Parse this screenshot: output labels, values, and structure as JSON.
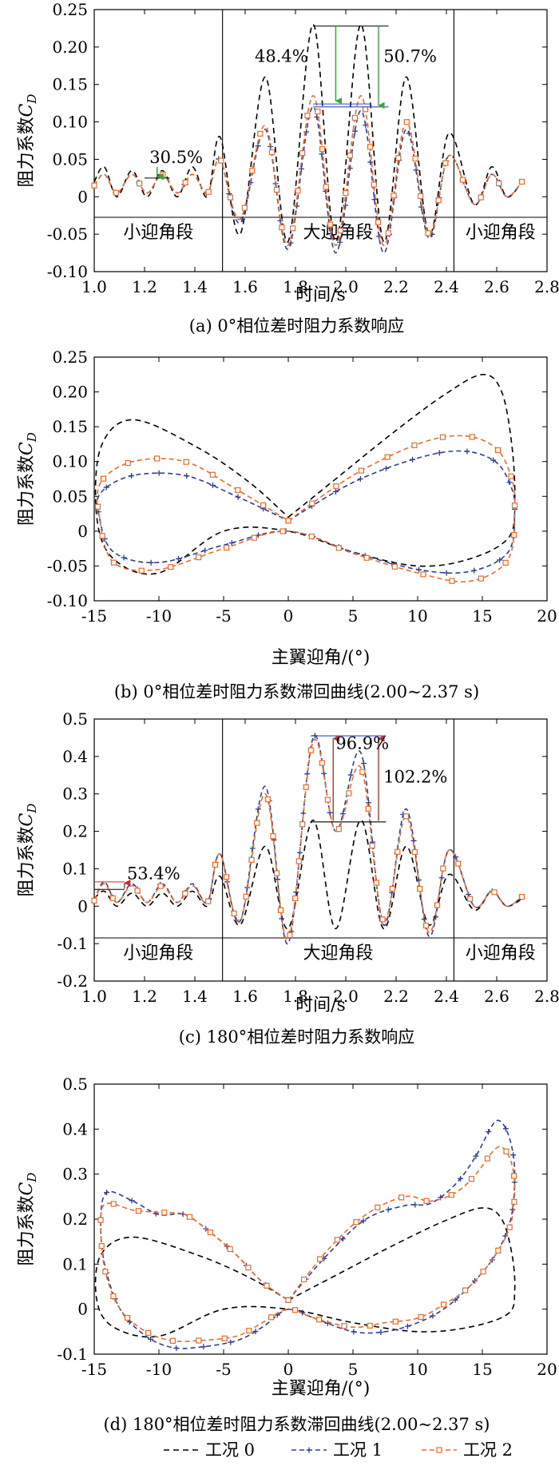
{
  "colors": {
    "case0": "#000000",
    "case1": "#2e3e96",
    "case2": "#ee6a2a",
    "green": "#3aa63a",
    "red": "#d02a2a",
    "blue": "#2e4fc8"
  },
  "legend": [
    {
      "label": "工况 0"
    },
    {
      "label": "工况 1"
    },
    {
      "label": "工况 2"
    }
  ],
  "chart_data": [
    {
      "type": "line",
      "caption": "(a) 0°相位差时阻力系数响应",
      "xlabel": "时间/s",
      "ylabel_main": "阻力系数",
      "ylabel_sym": "C",
      "ylabel_sub": "D",
      "xlim": [
        1.0,
        2.8
      ],
      "ylim": [
        -0.1,
        0.25
      ],
      "xticks": [
        "1.0",
        "1.2",
        "1.4",
        "1.6",
        "1.8",
        "2.0",
        "2.2",
        "2.4",
        "2.6",
        "2.8"
      ],
      "yticks": [
        "0.25",
        "0.20",
        "0.15",
        "0.10",
        "0.05",
        "0",
        "-0.05",
        "-0.10"
      ],
      "segments": [
        "小迎角段",
        "大迎角段",
        "小迎角段"
      ],
      "segment_bounds": [
        1.51,
        2.43
      ],
      "annotations": [
        "30.5%",
        "48.4%",
        "50.7%"
      ],
      "series": [
        {
          "id": "case0",
          "x": [
            1.0,
            1.04,
            1.09,
            1.15,
            1.21,
            1.27,
            1.33,
            1.39,
            1.45,
            1.5,
            1.58,
            1.68,
            1.77,
            1.87,
            1.96,
            2.06,
            2.15,
            2.24,
            2.33,
            2.41,
            2.51,
            2.58,
            2.64,
            2.7
          ],
          "y": [
            0.02,
            0.04,
            0.0,
            0.035,
            0.0,
            0.035,
            0.0,
            0.04,
            0.0,
            0.08,
            -0.05,
            0.16,
            -0.06,
            0.23,
            -0.06,
            0.23,
            -0.06,
            0.16,
            -0.05,
            0.085,
            -0.01,
            0.04,
            0.0,
            0.02
          ]
        },
        {
          "id": "case1",
          "x": [
            1.0,
            1.04,
            1.09,
            1.15,
            1.21,
            1.27,
            1.33,
            1.39,
            1.45,
            1.5,
            1.58,
            1.68,
            1.77,
            1.87,
            1.96,
            2.06,
            2.15,
            2.24,
            2.33,
            2.41,
            2.51,
            2.58,
            2.64,
            2.7
          ],
          "y": [
            0.015,
            0.03,
            0.005,
            0.03,
            0.005,
            0.03,
            0.005,
            0.03,
            0.005,
            0.05,
            -0.035,
            0.09,
            -0.07,
            0.12,
            -0.075,
            0.115,
            -0.075,
            0.09,
            -0.055,
            0.055,
            -0.01,
            0.03,
            0.0,
            0.02
          ]
        },
        {
          "id": "case2",
          "x": [
            1.0,
            1.04,
            1.09,
            1.15,
            1.21,
            1.27,
            1.33,
            1.39,
            1.45,
            1.5,
            1.58,
            1.68,
            1.77,
            1.87,
            1.96,
            2.06,
            2.15,
            2.24,
            2.33,
            2.41,
            2.51,
            2.58,
            2.64,
            2.7
          ],
          "y": [
            0.015,
            0.03,
            0.005,
            0.03,
            0.005,
            0.03,
            0.005,
            0.03,
            0.005,
            0.05,
            -0.03,
            0.095,
            -0.065,
            0.135,
            -0.065,
            0.135,
            -0.065,
            0.1,
            -0.05,
            0.055,
            -0.01,
            0.03,
            0.0,
            0.02
          ]
        }
      ]
    },
    {
      "type": "line",
      "caption": "(b) 0°相位差时阻力系数滞回曲线(2.00~2.37 s)",
      "xlabel": "主翼迎角/(°)",
      "ylabel_main": "阻力系数",
      "ylabel_sym": "C",
      "ylabel_sub": "D",
      "xlim": [
        -15,
        20
      ],
      "ylim": [
        -0.1,
        0.25
      ],
      "xticks": [
        "-15",
        "-10",
        "-5",
        "0",
        "5",
        "10",
        "15",
        "20"
      ],
      "yticks": [
        "0.25",
        "0.20",
        "0.15",
        "0.10",
        "0.05",
        "0",
        "-0.05",
        "-0.10"
      ],
      "series": [
        {
          "id": "case0",
          "x": [
            0,
            4,
            8,
            12,
            15,
            16.5,
            17.3,
            17.5,
            17,
            14,
            10,
            5,
            0,
            -5,
            -10,
            -13.5,
            -14.8,
            -14.5,
            -12,
            -7,
            -3,
            0
          ],
          "y": [
            0.02,
            0.08,
            0.14,
            0.195,
            0.225,
            0.2,
            0.12,
            0.04,
            -0.01,
            -0.04,
            -0.05,
            -0.03,
            0.0,
            0.0,
            -0.06,
            -0.04,
            0.02,
            0.12,
            0.16,
            0.12,
            0.07,
            0.02
          ]
        },
        {
          "id": "case1",
          "x": [
            0,
            5,
            10,
            13.5,
            16,
            17.2,
            17.5,
            17,
            14,
            10,
            5,
            0,
            -5,
            -10,
            -13.5,
            -14.6,
            -14.5,
            -12,
            -8,
            -4,
            0
          ],
          "y": [
            0.015,
            0.07,
            0.105,
            0.115,
            0.1,
            0.065,
            0.03,
            -0.03,
            -0.058,
            -0.055,
            -0.03,
            0.0,
            -0.02,
            -0.045,
            -0.03,
            0.02,
            0.055,
            0.08,
            0.08,
            0.05,
            0.015
          ]
        },
        {
          "id": "case2",
          "x": [
            0,
            5,
            10,
            13.5,
            16,
            17.2,
            17.5,
            17,
            14,
            10,
            5,
            0,
            -5,
            -10,
            -13.5,
            -14.6,
            -14.5,
            -12,
            -8,
            -4,
            0
          ],
          "y": [
            0.015,
            0.08,
            0.125,
            0.137,
            0.12,
            0.08,
            0.035,
            -0.04,
            -0.072,
            -0.06,
            -0.032,
            0.0,
            -0.025,
            -0.055,
            -0.045,
            0.02,
            0.07,
            0.1,
            0.1,
            0.06,
            0.015
          ]
        }
      ]
    },
    {
      "type": "line",
      "caption": "(c) 180°相位差时阻力系数响应",
      "xlabel": "时间/s",
      "ylabel_main": "阻力系数",
      "ylabel_sym": "C",
      "ylabel_sub": "D",
      "xlim": [
        1.0,
        2.8
      ],
      "ylim": [
        -0.2,
        0.5
      ],
      "xticks": [
        "1.0",
        "1.2",
        "1.4",
        "1.6",
        "1.8",
        "2.0",
        "2.2",
        "2.4",
        "2.6",
        "2.8"
      ],
      "yticks": [
        "0.5",
        "0.4",
        "0.3",
        "0.2",
        "0.1",
        "0",
        "-0.1",
        "-0.2"
      ],
      "segments": [
        "小迎角段",
        "大迎角段",
        "小迎角段"
      ],
      "segment_bounds": [
        1.51,
        2.43
      ],
      "annotations": [
        "53.4%",
        "96.9%",
        "102.2%"
      ],
      "series": [
        {
          "id": "case0",
          "x": [
            1.0,
            1.04,
            1.09,
            1.15,
            1.21,
            1.27,
            1.33,
            1.39,
            1.45,
            1.5,
            1.58,
            1.68,
            1.77,
            1.87,
            1.96,
            2.06,
            2.15,
            2.24,
            2.33,
            2.41,
            2.51,
            2.58,
            2.64,
            2.7
          ],
          "y": [
            0.02,
            0.04,
            0.0,
            0.035,
            0.0,
            0.035,
            0.0,
            0.04,
            0.0,
            0.08,
            -0.05,
            0.16,
            -0.06,
            0.23,
            -0.06,
            0.23,
            -0.06,
            0.16,
            -0.05,
            0.085,
            -0.01,
            0.04,
            0.0,
            0.02
          ]
        },
        {
          "id": "case1",
          "x": [
            1.0,
            1.04,
            1.09,
            1.15,
            1.21,
            1.27,
            1.33,
            1.39,
            1.45,
            1.5,
            1.58,
            1.68,
            1.77,
            1.87,
            1.96,
            2.06,
            2.15,
            2.24,
            2.33,
            2.41,
            2.51,
            2.58,
            2.64,
            2.7
          ],
          "y": [
            0.015,
            0.065,
            0.01,
            0.06,
            0.01,
            0.06,
            0.01,
            0.06,
            0.01,
            0.14,
            -0.04,
            0.32,
            -0.1,
            0.45,
            0.2,
            0.41,
            -0.05,
            0.26,
            -0.08,
            0.15,
            0.0,
            0.04,
            0.0,
            0.025
          ]
        },
        {
          "id": "case2",
          "x": [
            1.0,
            1.04,
            1.09,
            1.15,
            1.21,
            1.27,
            1.33,
            1.39,
            1.45,
            1.5,
            1.58,
            1.68,
            1.77,
            1.87,
            1.96,
            2.06,
            2.15,
            2.24,
            2.33,
            2.41,
            2.51,
            2.58,
            2.64,
            2.7
          ],
          "y": [
            0.015,
            0.06,
            0.01,
            0.055,
            0.01,
            0.055,
            0.01,
            0.055,
            0.01,
            0.14,
            -0.04,
            0.3,
            -0.09,
            0.44,
            0.2,
            0.37,
            -0.04,
            0.24,
            -0.07,
            0.15,
            0.0,
            0.04,
            0.0,
            0.025
          ]
        }
      ]
    },
    {
      "type": "line",
      "caption": "(d) 180°相位差时阻力系数滞回曲线(2.00~2.37 s)",
      "xlabel": "主翼迎角/(°)",
      "ylabel_main": "阻力系数",
      "ylabel_sym": "C",
      "ylabel_sub": "D",
      "xlim": [
        -15,
        20
      ],
      "ylim": [
        -0.1,
        0.5
      ],
      "xticks": [
        "-15",
        "-10",
        "-5",
        "0",
        "5",
        "10",
        "15",
        "20"
      ],
      "yticks": [
        "0.5",
        "0.4",
        "0.3",
        "0.2",
        "0.1",
        "0",
        "-0.1"
      ],
      "series": [
        {
          "id": "case0",
          "x": [
            0,
            4,
            8,
            12,
            15,
            16.5,
            17.3,
            17.5,
            17,
            14,
            10,
            5,
            0,
            -5,
            -10,
            -13.5,
            -14.8,
            -14.5,
            -12,
            -7,
            -3,
            0
          ],
          "y": [
            0.02,
            0.08,
            0.14,
            0.195,
            0.225,
            0.2,
            0.12,
            0.04,
            -0.01,
            -0.04,
            -0.05,
            -0.03,
            0.0,
            0.0,
            -0.06,
            -0.04,
            0.02,
            0.12,
            0.16,
            0.12,
            0.07,
            0.02
          ]
        },
        {
          "id": "case1",
          "x": [
            0,
            3,
            6,
            9,
            11,
            13,
            14.5,
            15.8,
            16.5,
            17.2,
            17.5,
            17.2,
            16,
            14,
            12,
            10,
            7.5,
            5,
            2,
            0,
            -2,
            -4,
            -7,
            -9,
            -11,
            -13,
            -14.2,
            -14.5,
            -14,
            -12,
            -10,
            -8,
            -6,
            -4,
            -2,
            0
          ],
          "y": [
            0.02,
            0.12,
            0.2,
            0.23,
            0.235,
            0.28,
            0.34,
            0.41,
            0.415,
            0.37,
            0.3,
            0.2,
            0.12,
            0.05,
            0.0,
            -0.03,
            -0.05,
            -0.05,
            -0.02,
            0.0,
            -0.04,
            -0.07,
            -0.085,
            -0.085,
            -0.06,
            0.0,
            0.1,
            0.2,
            0.26,
            0.24,
            0.21,
            0.21,
            0.17,
            0.12,
            0.06,
            0.02
          ]
        },
        {
          "id": "case2",
          "x": [
            0,
            3,
            6,
            9,
            11,
            13,
            14.5,
            15.8,
            16.5,
            17.2,
            17.5,
            17.2,
            16,
            14,
            12,
            10,
            7.5,
            5,
            2,
            0,
            -2,
            -4,
            -7,
            -9,
            -11,
            -13,
            -14.2,
            -14.5,
            -14,
            -12,
            -10,
            -8,
            -6,
            -4,
            -2,
            0
          ],
          "y": [
            0.02,
            0.13,
            0.21,
            0.25,
            0.24,
            0.26,
            0.3,
            0.35,
            0.36,
            0.33,
            0.27,
            0.19,
            0.12,
            0.05,
            0.01,
            -0.02,
            -0.03,
            -0.04,
            -0.02,
            0.0,
            -0.03,
            -0.06,
            -0.07,
            -0.07,
            -0.05,
            0.0,
            0.09,
            0.2,
            0.235,
            0.22,
            0.215,
            0.21,
            0.17,
            0.12,
            0.06,
            0.02
          ]
        }
      ]
    }
  ]
}
